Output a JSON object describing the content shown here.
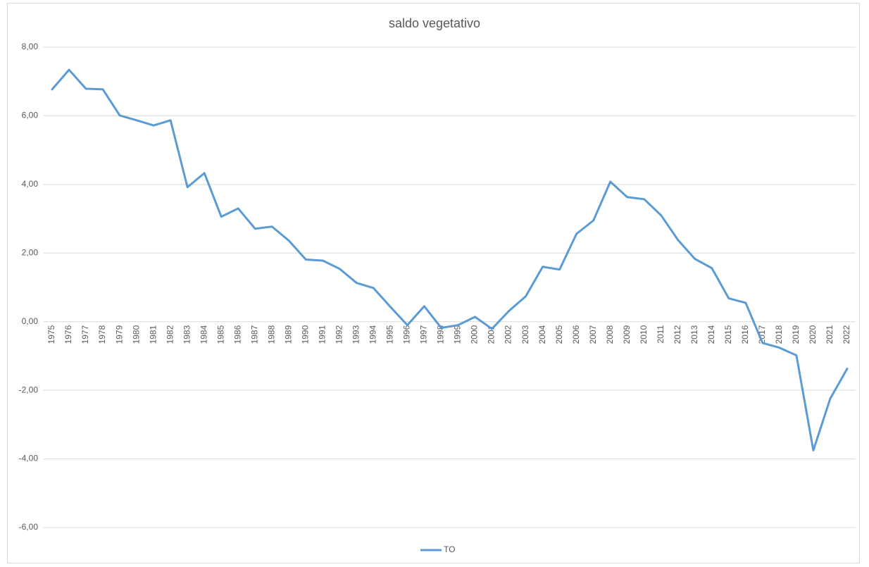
{
  "chart_data": {
    "type": "line",
    "title": "saldo vegetativo",
    "categories": [
      "1975",
      "1976",
      "1977",
      "1978",
      "1979",
      "1980",
      "1981",
      "1982",
      "1983",
      "1984",
      "1985",
      "1986",
      "1987",
      "1988",
      "1989",
      "1990",
      "1991",
      "1992",
      "1993",
      "1994",
      "1995",
      "1996",
      "1997",
      "1998",
      "1999",
      "2000",
      "2001",
      "2002",
      "2003",
      "2004",
      "2005",
      "2006",
      "2007",
      "2008",
      "2009",
      "2010",
      "2011",
      "2012",
      "2013",
      "2014",
      "2015",
      "2016",
      "2017",
      "2018",
      "2019",
      "2020",
      "2021",
      "2022"
    ],
    "series": [
      {
        "name": "TO",
        "color": "#5b9bd5",
        "values": [
          6.77,
          7.34,
          6.79,
          6.77,
          6.01,
          5.87,
          5.72,
          5.87,
          3.92,
          4.33,
          3.06,
          3.3,
          2.71,
          2.77,
          2.36,
          1.81,
          1.78,
          1.54,
          1.13,
          0.98,
          0.43,
          -0.1,
          0.45,
          -0.18,
          -0.1,
          0.14,
          -0.21,
          0.31,
          0.74,
          1.6,
          1.52,
          2.56,
          2.95,
          4.08,
          3.63,
          3.57,
          3.1,
          2.38,
          1.83,
          1.56,
          0.68,
          0.55,
          -0.62,
          -0.76,
          -0.98,
          -3.75,
          -2.24,
          -1.37
        ]
      }
    ],
    "ylim": [
      -6,
      8
    ],
    "yticks": [
      {
        "value": -6,
        "label": "-6,00"
      },
      {
        "value": -4,
        "label": "-4,00"
      },
      {
        "value": -2,
        "label": "-2,00"
      },
      {
        "value": 0,
        "label": "0,00"
      },
      {
        "value": 2,
        "label": "2,00"
      },
      {
        "value": 4,
        "label": "4,00"
      },
      {
        "value": 6,
        "label": "6,00"
      },
      {
        "value": 8,
        "label": "8,00"
      }
    ],
    "grid": true,
    "legend": "bottom"
  }
}
